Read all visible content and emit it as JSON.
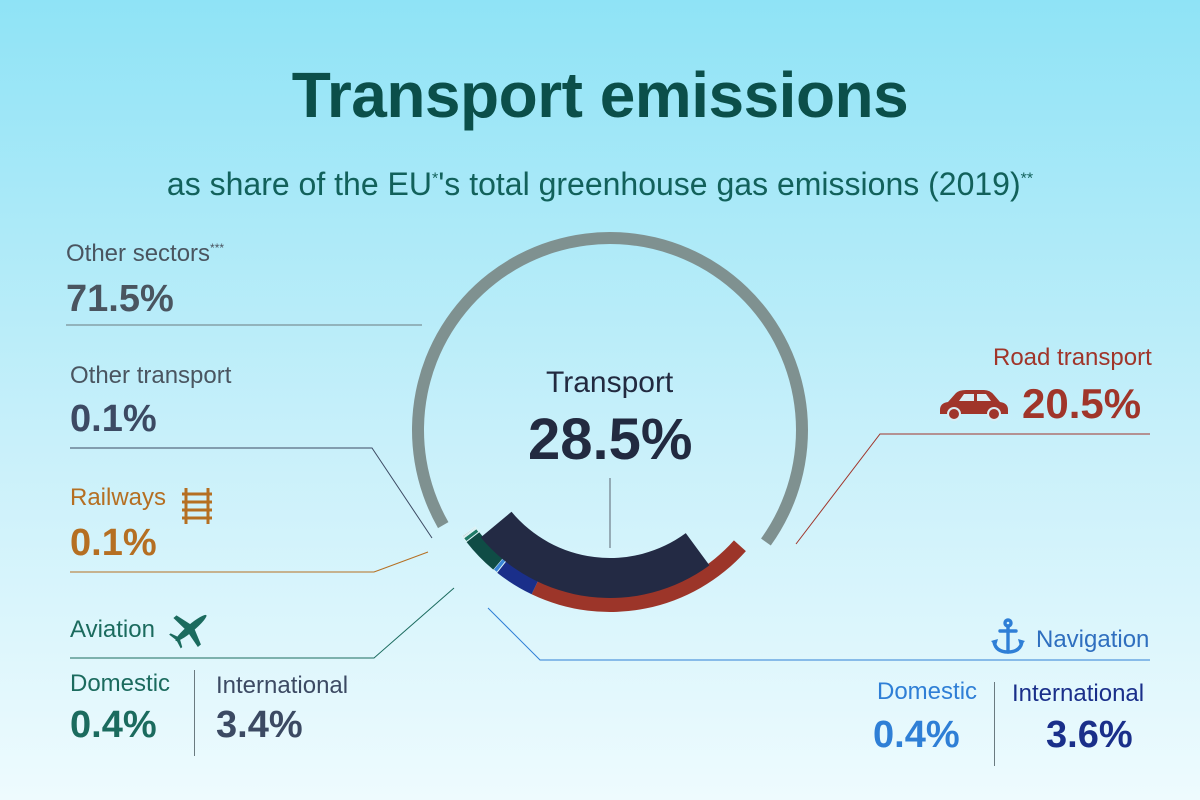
{
  "title": "Transport emissions",
  "subtitle": {
    "prefix": "as share of the EU",
    "mark1": "*",
    "middle": "'s total greenhouse gas emissions (2019)",
    "mark2": "**"
  },
  "colors": {
    "other_sectors": "#7f9190",
    "road": "#9c3529",
    "navigation_domestic": "#3a86d8",
    "navigation_international": "#1a2f8a",
    "aviation_domestic": "#1f7a66",
    "aviation_international": "#0f4c45",
    "railways": "#b56f22",
    "other_transport": "#3c4a63",
    "transport_total": "#232a44"
  },
  "labels": {
    "other_sectors": {
      "name": "Other sectors",
      "mark": "***",
      "value": "71.5%"
    },
    "other_transport": {
      "name": "Other transport",
      "value": "0.1%"
    },
    "railways": {
      "name": "Railways",
      "value": "0.1%",
      "icon": "railway-track-icon"
    },
    "aviation": {
      "name": "Aviation",
      "icon": "airplane-icon",
      "domestic_label": "Domestic",
      "domestic_value": "0.4%",
      "international_label": "International",
      "international_value": "3.4%"
    },
    "road": {
      "name": "Road transport",
      "value": "20.5%",
      "icon": "car-icon"
    },
    "navigation": {
      "name": "Navigation",
      "icon": "anchor-icon",
      "domestic_label": "Domestic",
      "domestic_value": "0.4%",
      "international_label": "International",
      "international_value": "3.6%"
    },
    "transport": {
      "name": "Transport",
      "value": "28.5%"
    }
  },
  "chart_data": {
    "type": "pie",
    "title": "Transport emissions",
    "subtitle": "as share of the EU*'s total greenhouse gas emissions (2019)**",
    "slices": [
      {
        "label": "Other sectors",
        "value": 71.5
      },
      {
        "label": "Road transport",
        "value": 20.5
      },
      {
        "label": "Navigation International",
        "value": 3.6
      },
      {
        "label": "Navigation Domestic",
        "value": 0.4
      },
      {
        "label": "Aviation International",
        "value": 3.4
      },
      {
        "label": "Aviation Domestic",
        "value": 0.4
      },
      {
        "label": "Railways",
        "value": 0.1
      },
      {
        "label": "Other transport",
        "value": 0.1
      }
    ],
    "group": {
      "label": "Transport",
      "value": 28.5
    }
  }
}
